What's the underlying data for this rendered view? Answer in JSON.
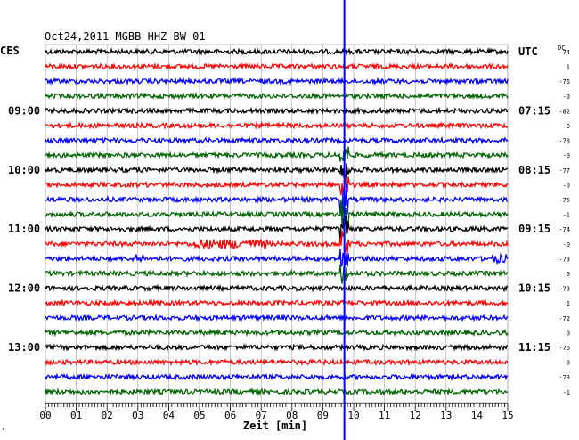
{
  "header": {
    "title": "Oct24,2011  MGBB HHZ BW 01",
    "left_zone": "CES",
    "right_zone": "UTC",
    "dc_label": "DC"
  },
  "footer": {
    "axis_title": "Zeit [min]",
    "corner_mark": "\""
  },
  "chart_data": {
    "type": "line",
    "title": "Oct24,2011  MGBB HHZ BW 01",
    "xlabel": "Zeit [min]",
    "ylabel": "",
    "xlim": [
      0,
      15
    ],
    "x_ticks": [
      "00",
      "01",
      "02",
      "03",
      "04",
      "05",
      "06",
      "07",
      "08",
      "09",
      "10",
      "11",
      "12",
      "13",
      "14",
      "15"
    ],
    "grid": true,
    "trace_colors": [
      "#000000",
      "#ff0000",
      "#0000ff",
      "#006400"
    ],
    "row_count": 24,
    "left_time_labels": [
      {
        "row": 4,
        "label": "09:00"
      },
      {
        "row": 8,
        "label": "10:00"
      },
      {
        "row": 12,
        "label": "11:00"
      },
      {
        "row": 16,
        "label": "12:00"
      },
      {
        "row": 20,
        "label": "13:00"
      }
    ],
    "right_time_labels": [
      {
        "row": 0,
        "label": "UTC"
      },
      {
        "row": 4,
        "label": "07:15"
      },
      {
        "row": 8,
        "label": "08:15"
      },
      {
        "row": 12,
        "label": "09:15"
      },
      {
        "row": 16,
        "label": "10:15"
      },
      {
        "row": 20,
        "label": "11:15"
      }
    ],
    "dc_offsets": [
      "74",
      "1",
      "-76",
      "-0",
      "-82",
      "0",
      "-78",
      "-0",
      "-77",
      "-0",
      "-75",
      "-1",
      "-74",
      "-0",
      "-73",
      "0",
      "-73",
      "1",
      "-72",
      "0",
      "-76",
      "-0",
      "-73",
      "-1"
    ],
    "event_marker": {
      "minute": 9.7,
      "color": "#0000ff"
    }
  }
}
